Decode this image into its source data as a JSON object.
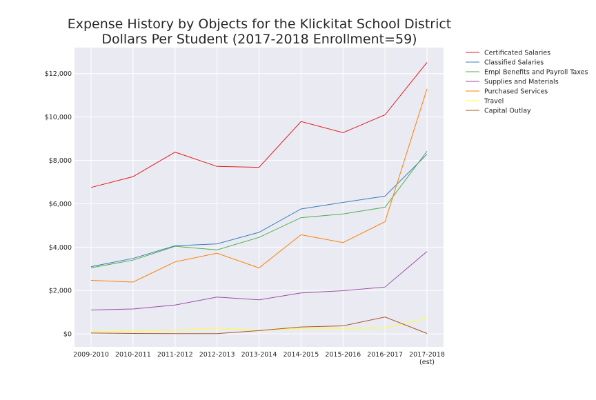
{
  "chart_data": {
    "type": "line",
    "title": [
      "Expense History by Objects for the Klickitat School District",
      "Dollars Per Student (2017-2018 Enrollment=59)"
    ],
    "xlabel": "",
    "ylabel": "",
    "categories": [
      "2009-2010",
      "2010-2011",
      "2011-2012",
      "2012-2013",
      "2013-2014",
      "2014-2015",
      "2015-2016",
      "2016-2017",
      "2017-2018"
    ],
    "category_sublabels": [
      "",
      "",
      "",
      "",
      "",
      "",
      "",
      "",
      "(est)"
    ],
    "ylim": [
      -600,
      13200
    ],
    "yticks": [
      0,
      2000,
      4000,
      6000,
      8000,
      10000,
      12000
    ],
    "ytick_labels": [
      "$0",
      "$2,000",
      "$4,000",
      "$6,000",
      "$8,000",
      "$10,000",
      "$12,000"
    ],
    "grid": true,
    "legend_position": "outside-top-right",
    "series": [
      {
        "name": "Certificated Salaries",
        "color": "#e41a1c",
        "values": [
          6750,
          7250,
          8380,
          7720,
          7680,
          9790,
          9280,
          10100,
          12520
        ]
      },
      {
        "name": "Classified Salaries",
        "color": "#377eb8",
        "values": [
          3100,
          3480,
          4060,
          4150,
          4680,
          5760,
          6060,
          6350,
          8280
        ]
      },
      {
        "name": "Empl Benefits and Payroll Taxes",
        "color": "#4daf4a",
        "values": [
          3050,
          3400,
          4040,
          3870,
          4450,
          5360,
          5530,
          5840,
          8420
        ]
      },
      {
        "name": "Supplies and Materials",
        "color": "#984ea3",
        "values": [
          1100,
          1150,
          1330,
          1700,
          1570,
          1890,
          1990,
          2160,
          3800
        ]
      },
      {
        "name": "Purchased Services",
        "color": "#ff7f00",
        "values": [
          2470,
          2390,
          3320,
          3720,
          3040,
          4570,
          4210,
          5170,
          11300
        ]
      },
      {
        "name": "Travel",
        "color": "#ffff33",
        "values": [
          100,
          120,
          170,
          270,
          150,
          260,
          250,
          270,
          720
        ]
      },
      {
        "name": "Capital Outlay",
        "color": "#a65628",
        "values": [
          40,
          20,
          10,
          10,
          150,
          320,
          370,
          780,
          20
        ]
      }
    ]
  }
}
